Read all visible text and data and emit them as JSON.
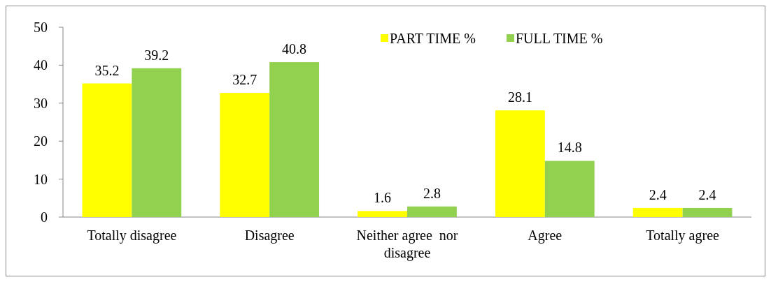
{
  "chart_data": {
    "type": "bar",
    "categories": [
      "Totally disagree",
      "Disagree",
      "Neither agree  nor disagree",
      "Agree",
      "Totally agree"
    ],
    "series": [
      {
        "name": "PART TIME %",
        "color": "#ffff00",
        "values": [
          35.2,
          32.7,
          1.6,
          28.1,
          2.4
        ]
      },
      {
        "name": "FULL TIME %",
        "color": "#92d050",
        "values": [
          39.2,
          40.8,
          2.8,
          14.8,
          2.4
        ]
      }
    ],
    "ylim": [
      0,
      50
    ],
    "yticks": [
      0,
      10,
      20,
      30,
      40,
      50
    ],
    "grid": false,
    "legend": "top right",
    "data_labels": true
  }
}
